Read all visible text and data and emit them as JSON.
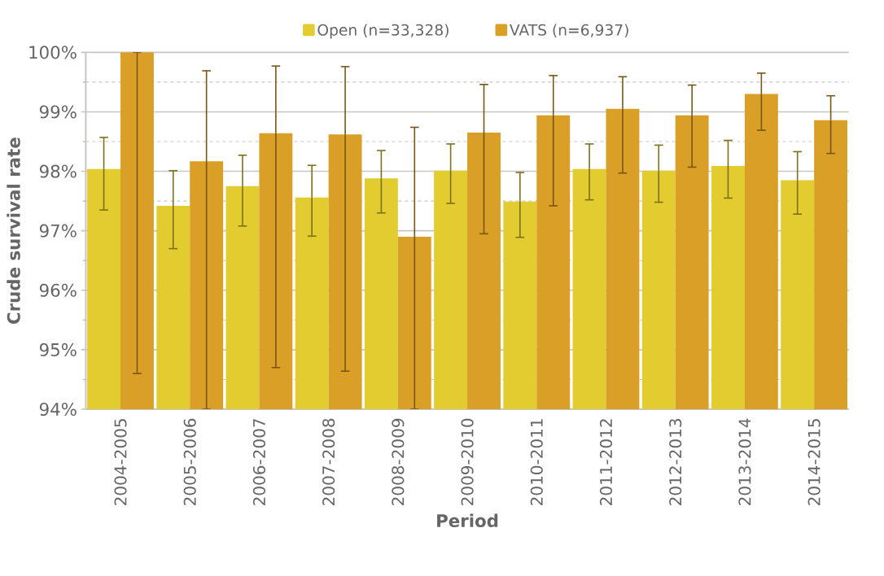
{
  "chart_data": {
    "type": "bar",
    "xlabel": "Period",
    "ylabel": "Crude survival rate",
    "categories": [
      "2004-2005",
      "2005-2006",
      "2006-2007",
      "2007-2008",
      "2008-2009",
      "2009-2010",
      "2010-2011",
      "2011-2012",
      "2012-2013",
      "2013-2014",
      "2014-2015"
    ],
    "series": [
      {
        "name": "Open (n=33,328)",
        "color": "#e2cc30",
        "values": [
          98.04,
          97.42,
          97.75,
          97.56,
          97.88,
          98.01,
          97.49,
          98.04,
          98.01,
          98.09,
          97.85
        ],
        "errors": [
          [
            97.35,
            98.57
          ],
          [
            96.7,
            98.01
          ],
          [
            97.08,
            98.27
          ],
          [
            96.91,
            98.1
          ],
          [
            97.3,
            98.35
          ],
          [
            97.46,
            98.46
          ],
          [
            96.89,
            97.98
          ],
          [
            97.52,
            98.46
          ],
          [
            97.48,
            98.44
          ],
          [
            97.55,
            98.52
          ],
          [
            97.28,
            98.33
          ]
        ]
      },
      {
        "name": "VATS (n=6,937)",
        "color": "#d99f26",
        "values": [
          100.0,
          98.17,
          98.64,
          98.62,
          96.9,
          98.65,
          98.94,
          99.05,
          98.94,
          99.3,
          98.86
        ],
        "errors": [
          [
            94.6,
            100.0
          ],
          [
            94.0,
            99.69
          ],
          [
            94.7,
            99.77
          ],
          [
            94.64,
            99.76
          ],
          [
            94.0,
            98.74
          ],
          [
            96.95,
            99.46
          ],
          [
            97.42,
            99.61
          ],
          [
            97.97,
            99.59
          ],
          [
            98.07,
            99.45
          ],
          [
            98.69,
            99.65
          ],
          [
            98.3,
            99.27
          ]
        ]
      }
    ],
    "ylim": [
      94,
      100
    ],
    "yticks": [
      {
        "value": 94,
        "label": "94%"
      },
      {
        "value": 95,
        "label": "95%"
      },
      {
        "value": 96,
        "label": "96%"
      },
      {
        "value": 97,
        "label": "97%"
      },
      {
        "value": 98,
        "label": "98%"
      },
      {
        "value": 99,
        "label": "99%"
      },
      {
        "value": 100,
        "label": "100%"
      }
    ],
    "grid": "y",
    "legend": "top"
  }
}
